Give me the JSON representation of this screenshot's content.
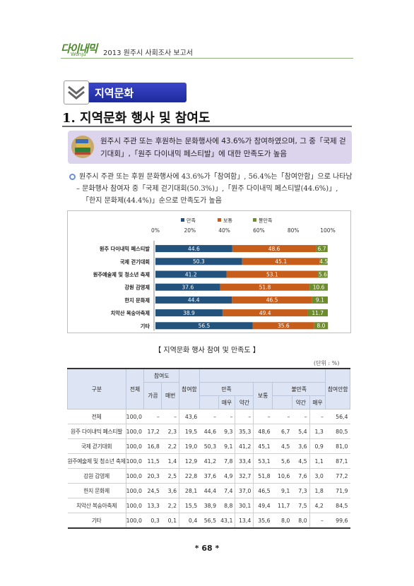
{
  "header": {
    "logo_script": "다이내믹",
    "logo_sub": "Wonju",
    "title": "2013 원주시 사회조사 보고서"
  },
  "section": {
    "label": "지역문화"
  },
  "chapter": {
    "title": "1. 지역문화 행사 및 참여도"
  },
  "summary": {
    "text": "원주시 주관 또는 후원하는 문화행사에 43.6%가 참여하였으며, 그 중「국제 걷기대회」,「원주 다이내믹 페스티발」에 대한 만족도가 높음"
  },
  "paragraph": {
    "line1": "원주시 주관 또는 후원 문화행사에 43.6%가「참여함」, 56.4%는「참여안함」으로 나타남",
    "line2": "– 문화행사 참여자 중「국제 걷기대회(50.3%)」,「원주 다이내믹 페스티발(44.6%)」,",
    "line3": "「한지 문화제(44.4%)」순으로 만족도가 높음"
  },
  "chart_data": {
    "type": "bar",
    "orientation": "horizontal",
    "stacked": true,
    "categories": [
      "원주 다이내믹 페스티발",
      "국제 걷기대회",
      "원주예술제 및 청소년 축제",
      "강원 감영제",
      "한지 문화제",
      "치악산 복숭아축제",
      "기타"
    ],
    "series": [
      {
        "name": "만족",
        "color": "#23527c",
        "values": [
          44.6,
          50.3,
          41.2,
          37.6,
          44.4,
          38.9,
          56.5
        ]
      },
      {
        "name": "보통",
        "color": "#c65d1a",
        "values": [
          48.6,
          45.1,
          53.1,
          51.8,
          46.5,
          49.4,
          35.6
        ]
      },
      {
        "name": "불만족",
        "color": "#6e8b2d",
        "values": [
          6.7,
          4.5,
          5.6,
          10.6,
          9.1,
          11.7,
          8.0
        ]
      }
    ],
    "x_ticks": [
      "0%",
      "20%",
      "40%",
      "60%",
      "80%",
      "100%"
    ],
    "xlim": [
      0,
      100
    ],
    "legend": "top-center",
    "grid": false
  },
  "table": {
    "title": "【 지역문화 행사 참여 및 만족도 】",
    "unit": "(단위 : %)",
    "headers": {
      "category": "구분",
      "total": "전체",
      "participation": "참여도",
      "often": "가끔",
      "sometimes": "매번",
      "participate": "참여함",
      "satisfied": "만족",
      "very": "매우",
      "slightly": "약간",
      "normal": "보통",
      "dissatisfied": "불만족",
      "slightly2": "약간",
      "very2": "매우",
      "not_participate": "참여안함"
    },
    "rows": [
      {
        "cat": "전체",
        "v": [
          "100,0",
          "–",
          "–",
          "43,6",
          "–",
          "–",
          "–",
          "–",
          "–",
          "–",
          "–",
          "56,4"
        ]
      },
      {
        "cat": "원주 다이내믹 페스티발",
        "v": [
          "100,0",
          "17,2",
          "2,3",
          "19,5",
          "44,6",
          "9,3",
          "35,3",
          "48,6",
          "6,7",
          "5,4",
          "1,3",
          "80,5"
        ]
      },
      {
        "cat": "국제 걷기대회",
        "v": [
          "100,0",
          "16,8",
          "2,2",
          "19,0",
          "50,3",
          "9,1",
          "41,2",
          "45,1",
          "4,5",
          "3,6",
          "0,9",
          "81,0"
        ]
      },
      {
        "cat": "원주예술제 및 청소년 축제",
        "v": [
          "100,0",
          "11,5",
          "1,4",
          "12,9",
          "41,2",
          "7,8",
          "33,4",
          "53,1",
          "5,6",
          "4,5",
          "1,1",
          "87,1"
        ]
      },
      {
        "cat": "강원 감영제",
        "v": [
          "100,0",
          "20,3",
          "2,5",
          "22,8",
          "37,6",
          "4,9",
          "32,7",
          "51,8",
          "10,6",
          "7,6",
          "3,0",
          "77,2"
        ]
      },
      {
        "cat": "한지 문화제",
        "v": [
          "100,0",
          "24,5",
          "3,6",
          "28,1",
          "44,4",
          "7,4",
          "37,0",
          "46,5",
          "9,1",
          "7,3",
          "1,8",
          "71,9"
        ]
      },
      {
        "cat": "치악산 복숭아축제",
        "v": [
          "100,0",
          "13,3",
          "2,2",
          "15,5",
          "38,9",
          "8,8",
          "30,1",
          "49,4",
          "11,7",
          "7,5",
          "4,2",
          "84,5"
        ]
      },
      {
        "cat": "기타",
        "v": [
          "100,0",
          "0,3",
          "0,1",
          "0,4",
          "56,5",
          "43,1",
          "13,4",
          "35,6",
          "8,0",
          "8,0",
          "–",
          "99,6"
        ]
      }
    ]
  },
  "page_number": "* 68 *"
}
